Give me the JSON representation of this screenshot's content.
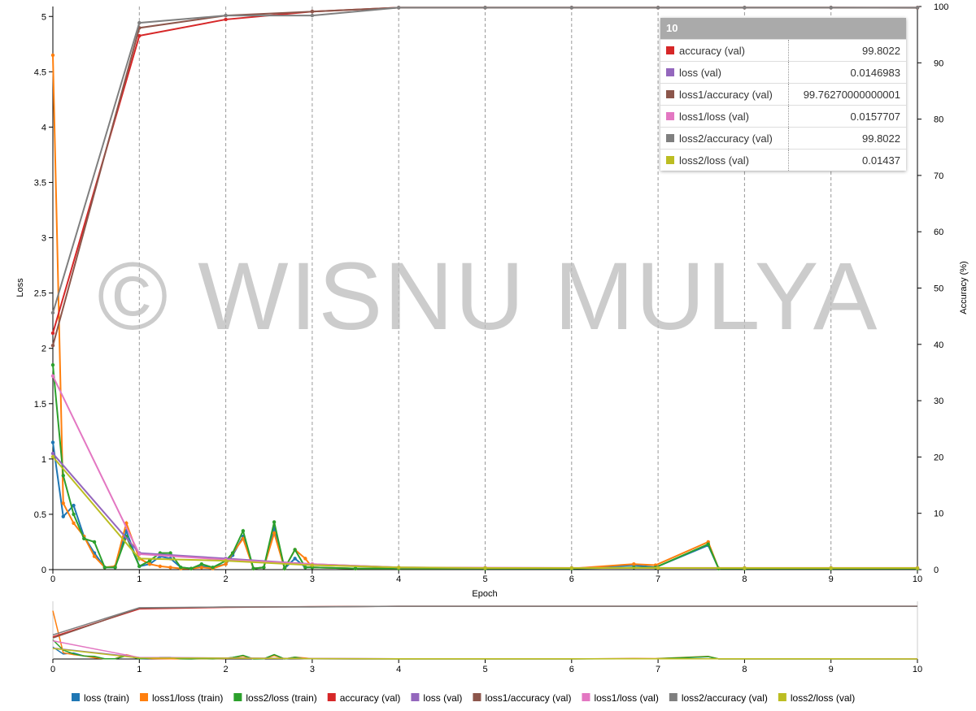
{
  "chart_data": {
    "type": "line",
    "watermark": "© WISNU MULYA",
    "xlabel": "Epoch",
    "ylabel": "Loss",
    "y2label": "Accuracy (%)",
    "xlim": [
      0,
      10
    ],
    "xticks": [
      0,
      1,
      2,
      3,
      4,
      5,
      6,
      7,
      8,
      9,
      10
    ],
    "ylim": [
      0,
      5.09
    ],
    "yticks": [
      0,
      0.5,
      1,
      1.5,
      2,
      2.5,
      3,
      3.5,
      4,
      4.5,
      5
    ],
    "y2lim": [
      0,
      100
    ],
    "y2ticks": [
      0,
      10,
      20,
      30,
      40,
      50,
      60,
      70,
      80,
      90,
      100
    ],
    "grid": true,
    "series": [
      {
        "name": "loss (train)",
        "color": "#1f77b4",
        "x": [
          0,
          0.12,
          0.24,
          0.36,
          0.48,
          0.6,
          0.72,
          0.85,
          1,
          1.12,
          1.24,
          1.36,
          1.48,
          1.6,
          1.72,
          1.85,
          2,
          2.08,
          2.2,
          2.32,
          2.44,
          2.56,
          2.68,
          2.8,
          2.92,
          3,
          3.5,
          4,
          5,
          6,
          6.72,
          6.97,
          7.58,
          7.7,
          8,
          9,
          10
        ],
        "values": [
          1.15,
          0.48,
          0.58,
          0.3,
          0.15,
          0.02,
          0.02,
          0.35,
          0.03,
          0.05,
          0.12,
          0.1,
          0.02,
          0.01,
          0.03,
          0.02,
          0.05,
          0.13,
          0.3,
          0.01,
          0.02,
          0.38,
          0.01,
          0.1,
          0.02,
          0.02,
          0.01,
          0.01,
          0.01,
          0.01,
          0.04,
          0.02,
          0.22,
          0.01,
          0.01,
          0.01,
          0.01
        ]
      },
      {
        "name": "loss1/loss (train)",
        "color": "#ff7f0e",
        "x": [
          0,
          0.12,
          0.24,
          0.36,
          0.48,
          0.6,
          0.72,
          0.85,
          1,
          1.12,
          1.24,
          1.36,
          1.48,
          1.6,
          1.72,
          1.85,
          2,
          2.08,
          2.2,
          2.32,
          2.44,
          2.56,
          2.68,
          2.8,
          2.92,
          3,
          3.5,
          4,
          5,
          6,
          6.72,
          6.97,
          7.58,
          7.7,
          8,
          9,
          10
        ],
        "values": [
          4.65,
          0.6,
          0.42,
          0.3,
          0.12,
          0.02,
          0.03,
          0.42,
          0.1,
          0.05,
          0.03,
          0.02,
          0.01,
          0.01,
          0.02,
          0.01,
          0.05,
          0.15,
          0.28,
          0.01,
          0.02,
          0.33,
          0.01,
          0.18,
          0.1,
          0.02,
          0.01,
          0.01,
          0.01,
          0.01,
          0.05,
          0.04,
          0.25,
          0.01,
          0.01,
          0.01,
          0.01
        ]
      },
      {
        "name": "loss2/loss (train)",
        "color": "#2ca02c",
        "x": [
          0,
          0.12,
          0.24,
          0.36,
          0.48,
          0.6,
          0.72,
          0.85,
          1,
          1.12,
          1.24,
          1.36,
          1.48,
          1.6,
          1.72,
          1.85,
          2,
          2.08,
          2.2,
          2.32,
          2.44,
          2.56,
          2.68,
          2.8,
          2.92,
          3,
          3.5,
          4,
          5,
          6,
          6.72,
          6.97,
          7.58,
          7.7,
          8,
          9,
          10
        ],
        "values": [
          1.85,
          0.85,
          0.5,
          0.28,
          0.25,
          0.02,
          0.02,
          0.3,
          0.03,
          0.08,
          0.15,
          0.15,
          0.02,
          0.01,
          0.05,
          0.02,
          0.08,
          0.15,
          0.35,
          0.01,
          0.02,
          0.43,
          0.01,
          0.18,
          0.02,
          0.02,
          0.01,
          0.01,
          0.01,
          0.01,
          0.02,
          0.02,
          0.23,
          0.01,
          0.01,
          0.01,
          0.01
        ]
      },
      {
        "name": "accuracy (val)",
        "color": "#d62728",
        "axis": "y2",
        "x": [
          0,
          1,
          2,
          3,
          4,
          5,
          6,
          7,
          8,
          9,
          10
        ],
        "values": [
          42,
          94.8,
          97.7,
          99.1,
          99.8,
          99.8,
          99.8,
          99.8,
          99.8,
          99.8,
          99.8022
        ]
      },
      {
        "name": "loss (val)",
        "color": "#9467bd",
        "x": [
          0,
          1,
          2,
          3,
          4,
          5,
          6,
          7,
          8,
          9,
          10
        ],
        "values": [
          1.05,
          0.15,
          0.1,
          0.05,
          0.02,
          0.016,
          0.015,
          0.015,
          0.015,
          0.015,
          0.0146983
        ]
      },
      {
        "name": "loss1/accuracy (val)",
        "color": "#8c564b",
        "axis": "y2",
        "x": [
          0,
          1,
          2,
          3,
          4,
          5,
          6,
          7,
          8,
          9,
          10
        ],
        "values": [
          39.8,
          96.2,
          98.4,
          99.1,
          99.8,
          99.8,
          99.8,
          99.8,
          99.8,
          99.8,
          99.76270000000001
        ]
      },
      {
        "name": "loss1/loss (val)",
        "color": "#e377c2",
        "x": [
          0,
          1,
          2,
          3,
          4,
          5,
          6,
          7,
          8,
          9,
          10
        ],
        "values": [
          1.75,
          0.14,
          0.09,
          0.05,
          0.02,
          0.017,
          0.016,
          0.016,
          0.016,
          0.016,
          0.0157707
        ]
      },
      {
        "name": "loss2/accuracy (val)",
        "color": "#7f7f7f",
        "axis": "y2",
        "x": [
          0,
          1,
          2,
          3,
          4,
          5,
          6,
          7,
          8,
          9,
          10
        ],
        "values": [
          45.6,
          97.1,
          98.4,
          98.4,
          99.8,
          99.8,
          99.8,
          99.8,
          99.8,
          99.8,
          99.8022
        ]
      },
      {
        "name": "loss2/loss (val)",
        "color": "#bcbd22",
        "x": [
          0,
          1,
          2,
          3,
          4,
          5,
          6,
          7,
          8,
          9,
          10
        ],
        "values": [
          1.02,
          0.1,
          0.08,
          0.04,
          0.02,
          0.015,
          0.015,
          0.015,
          0.015,
          0.015,
          0.01437
        ]
      }
    ],
    "tooltip_series": [
      3,
      4,
      5,
      6,
      7,
      8
    ]
  }
}
